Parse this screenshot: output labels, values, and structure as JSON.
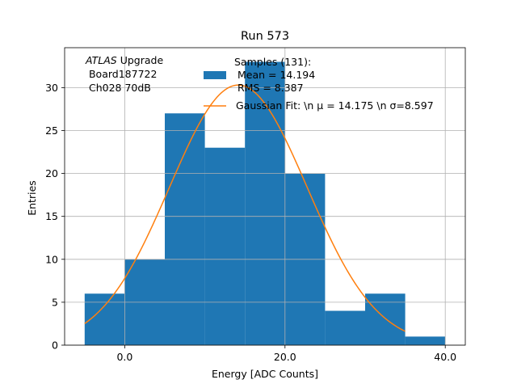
{
  "chart_data": {
    "type": "bar",
    "title": "Run 573",
    "xlabel": "Energy [ADC Counts]",
    "ylabel": "Entries",
    "xlim": [
      -7.5,
      42.5
    ],
    "ylim": [
      0,
      34.65
    ],
    "xticks": [
      0,
      20,
      40
    ],
    "xtick_labels": [
      "0.0",
      "20.0",
      "40.0"
    ],
    "yticks": [
      0,
      5,
      10,
      15,
      20,
      25,
      30
    ],
    "ytick_labels": [
      "0",
      "5",
      "10",
      "15",
      "20",
      "25",
      "30"
    ],
    "grid": true,
    "bins": [
      {
        "x0": -5,
        "x1": 0,
        "value": 6
      },
      {
        "x0": 0,
        "x1": 5,
        "value": 10
      },
      {
        "x0": 5,
        "x1": 10,
        "value": 27
      },
      {
        "x0": 10,
        "x1": 15,
        "value": 23
      },
      {
        "x0": 15,
        "x1": 20,
        "value": 33
      },
      {
        "x0": 20,
        "x1": 25,
        "value": 20
      },
      {
        "x0": 25,
        "x1": 30,
        "value": 4
      },
      {
        "x0": 30,
        "x1": 35,
        "value": 6
      },
      {
        "x0": 35,
        "x1": 40,
        "value": 1
      }
    ],
    "fit": {
      "mu": 14.175,
      "sigma": 8.597,
      "amplitude": 30.3,
      "x_range": [
        -5,
        35
      ]
    },
    "annotation": {
      "lines": [
        "ATLAS Upgrade",
        " Board187722",
        " Ch028 70dB"
      ],
      "italic_word": "ATLAS",
      "regular_rest": " Upgrade"
    },
    "legend": {
      "placement": "top-right",
      "entries": [
        {
          "label_lines": [
            "Samples (131):",
            " Mean = 14.194",
            " RMS = 8.387"
          ],
          "kind": "patch"
        },
        {
          "label_lines": [
            "Gaussian Fit: \\n μ = 14.175 \\n σ=8.597"
          ],
          "kind": "line"
        }
      ]
    },
    "colors": {
      "bars": "#1f77b4",
      "fit": "#ff7f0e",
      "grid": "#b0b0b0",
      "axes": "#000000"
    }
  }
}
